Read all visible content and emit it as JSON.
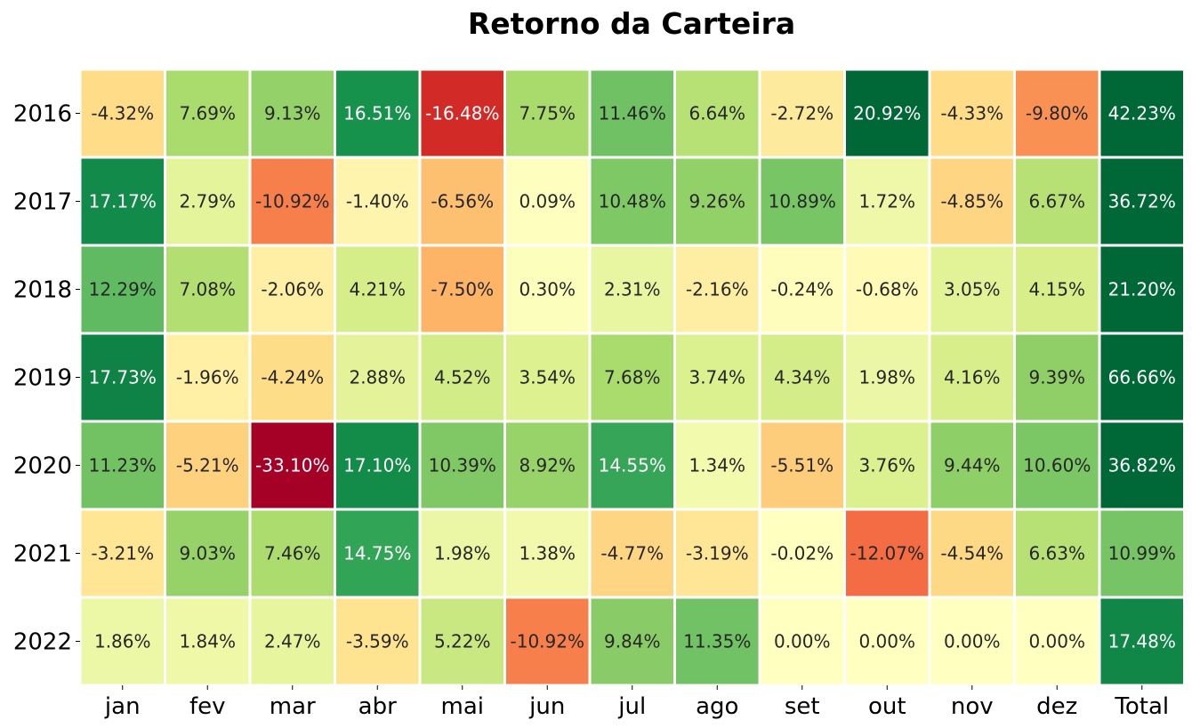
{
  "chart_data": {
    "type": "heatmap",
    "title": "Retorno da Carteira",
    "columns": [
      "jan",
      "fev",
      "mar",
      "abr",
      "mai",
      "jun",
      "jul",
      "ago",
      "set",
      "out",
      "nov",
      "dez",
      "Total"
    ],
    "rows": [
      "2016",
      "2017",
      "2018",
      "2019",
      "2020",
      "2021",
      "2022"
    ],
    "values": [
      [
        -4.32,
        7.69,
        9.13,
        16.51,
        -16.48,
        7.75,
        11.46,
        6.64,
        -2.72,
        20.92,
        -4.33,
        -9.8,
        42.23
      ],
      [
        17.17,
        2.79,
        -10.92,
        -1.4,
        -6.56,
        0.09,
        10.48,
        9.26,
        10.89,
        1.72,
        -4.85,
        6.67,
        36.72
      ],
      [
        12.29,
        7.08,
        -2.06,
        4.21,
        -7.5,
        0.3,
        2.31,
        -2.16,
        -0.24,
        -0.68,
        3.05,
        4.15,
        21.2
      ],
      [
        17.73,
        -1.96,
        -4.24,
        2.88,
        4.52,
        3.54,
        7.68,
        3.74,
        4.34,
        1.98,
        4.16,
        9.39,
        66.66
      ],
      [
        11.23,
        -5.21,
        -33.1,
        17.1,
        10.39,
        8.92,
        14.55,
        1.34,
        -5.51,
        3.76,
        9.44,
        10.6,
        36.82
      ],
      [
        -3.21,
        9.03,
        7.46,
        14.75,
        1.98,
        1.38,
        -4.77,
        -3.19,
        -0.02,
        -12.07,
        -4.54,
        6.63,
        10.99
      ],
      [
        1.86,
        1.84,
        2.47,
        -3.59,
        5.22,
        -10.92,
        9.84,
        11.35,
        0.0,
        0.0,
        0.0,
        0.0,
        17.48
      ]
    ],
    "value_format": "percent_2dp",
    "colormap": "RdYlGn",
    "color_range": [
      -20,
      20
    ],
    "grid": false,
    "legend": "none"
  }
}
